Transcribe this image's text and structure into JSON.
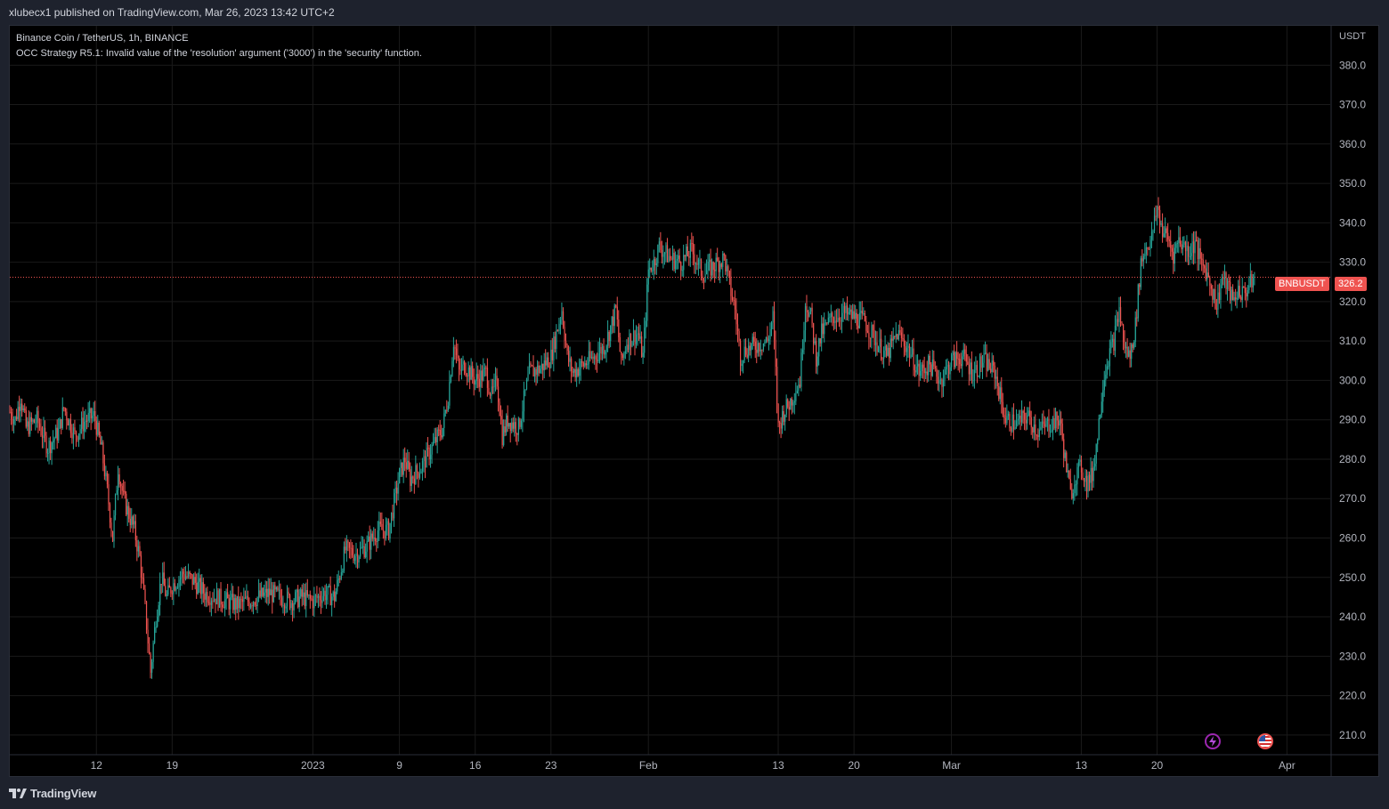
{
  "header": {
    "publish_text": "xlubecx1 published on TradingView.com, Mar 26, 2023 13:42 UTC+2"
  },
  "legend": {
    "symbol_line": "Binance Coin / TetherUS, 1h, BINANCE",
    "error_line": "OCC Strategy R5.1: Invalid value of the 'resolution' argument ('3000') in the 'security' function."
  },
  "price_axis": {
    "unit_label": "USDT"
  },
  "last_price": {
    "symbol": "BNBUSDT",
    "value": "326.2",
    "color": "#ef5350"
  },
  "footer": {
    "brand": "TradingView"
  },
  "events": {
    "lightning_icon": "lightning-icon",
    "flag_icon": "us-flag-icon"
  },
  "colors": {
    "up": "#26a69a",
    "down": "#ef5350",
    "background": "#000000",
    "grid": "#1a1a1a"
  },
  "chart_data": {
    "type": "candlestick",
    "title": "Binance Coin / TetherUS, 1h, BINANCE",
    "ylabel": "USDT",
    "ylim": [
      205,
      390
    ],
    "y_ticks": [
      210,
      220,
      230,
      240,
      250,
      260,
      270,
      280,
      290,
      300,
      310,
      320,
      330,
      340,
      350,
      360,
      370,
      380
    ],
    "x_ticks": [
      {
        "label": "12",
        "day": 0
      },
      {
        "label": "19",
        "day": 7
      },
      {
        "label": "2023",
        "day": 20
      },
      {
        "label": "9",
        "day": 28
      },
      {
        "label": "16",
        "day": 35
      },
      {
        "label": "23",
        "day": 42
      },
      {
        "label": "Feb",
        "day": 51
      },
      {
        "label": "13",
        "day": 63
      },
      {
        "label": "20",
        "day": 70
      },
      {
        "label": "Mar",
        "day": 79
      },
      {
        "label": "13",
        "day": 91
      },
      {
        "label": "20",
        "day": 98
      },
      {
        "label": "Apr",
        "day": 110
      }
    ],
    "x_range_days": [
      -8,
      114
    ],
    "series_close": [
      {
        "d": -8,
        "v": 292
      },
      {
        "d": -7.5,
        "v": 290
      },
      {
        "d": -7,
        "v": 296
      },
      {
        "d": -6.5,
        "v": 288
      },
      {
        "d": -5.5,
        "v": 290
      },
      {
        "d": -4.5,
        "v": 283
      },
      {
        "d": -3.5,
        "v": 287
      },
      {
        "d": -3,
        "v": 293
      },
      {
        "d": -2,
        "v": 286
      },
      {
        "d": -1,
        "v": 290
      },
      {
        "d": -0.2,
        "v": 291
      },
      {
        "d": 0.5,
        "v": 282
      },
      {
        "d": 1,
        "v": 272
      },
      {
        "d": 1.5,
        "v": 260
      },
      {
        "d": 2,
        "v": 278
      },
      {
        "d": 2.5,
        "v": 270
      },
      {
        "d": 3,
        "v": 266
      },
      {
        "d": 3.5,
        "v": 262
      },
      {
        "d": 4,
        "v": 255
      },
      {
        "d": 4.5,
        "v": 242
      },
      {
        "d": 5,
        "v": 226
      },
      {
        "d": 5.5,
        "v": 240
      },
      {
        "d": 6,
        "v": 250
      },
      {
        "d": 6.5,
        "v": 245
      },
      {
        "d": 7,
        "v": 248
      },
      {
        "d": 8,
        "v": 251
      },
      {
        "d": 9,
        "v": 249
      },
      {
        "d": 10,
        "v": 246
      },
      {
        "d": 11,
        "v": 245
      },
      {
        "d": 12,
        "v": 244
      },
      {
        "d": 13,
        "v": 243
      },
      {
        "d": 14,
        "v": 244
      },
      {
        "d": 15,
        "v": 245
      },
      {
        "d": 16,
        "v": 246
      },
      {
        "d": 17,
        "v": 245
      },
      {
        "d": 18,
        "v": 244
      },
      {
        "d": 19,
        "v": 245
      },
      {
        "d": 20,
        "v": 244
      },
      {
        "d": 21,
        "v": 246
      },
      {
        "d": 22,
        "v": 245
      },
      {
        "d": 23,
        "v": 257
      },
      {
        "d": 24,
        "v": 256
      },
      {
        "d": 25,
        "v": 258
      },
      {
        "d": 26,
        "v": 262
      },
      {
        "d": 27,
        "v": 262
      },
      {
        "d": 28,
        "v": 276
      },
      {
        "d": 28.5,
        "v": 280
      },
      {
        "d": 29,
        "v": 275
      },
      {
        "d": 30,
        "v": 278
      },
      {
        "d": 31,
        "v": 283
      },
      {
        "d": 32,
        "v": 288
      },
      {
        "d": 32.5,
        "v": 296
      },
      {
        "d": 33,
        "v": 310
      },
      {
        "d": 33.5,
        "v": 302
      },
      {
        "d": 34,
        "v": 304
      },
      {
        "d": 35,
        "v": 300
      },
      {
        "d": 36,
        "v": 302
      },
      {
        "d": 36.5,
        "v": 296
      },
      {
        "d": 37,
        "v": 300
      },
      {
        "d": 37.5,
        "v": 286
      },
      {
        "d": 38,
        "v": 290
      },
      {
        "d": 39,
        "v": 288
      },
      {
        "d": 40,
        "v": 302
      },
      {
        "d": 41,
        "v": 303
      },
      {
        "d": 42,
        "v": 306
      },
      {
        "d": 43,
        "v": 318
      },
      {
        "d": 43.5,
        "v": 306
      },
      {
        "d": 44,
        "v": 302
      },
      {
        "d": 45,
        "v": 304
      },
      {
        "d": 46,
        "v": 306
      },
      {
        "d": 47,
        "v": 309
      },
      {
        "d": 48,
        "v": 318
      },
      {
        "d": 48.5,
        "v": 304
      },
      {
        "d": 49,
        "v": 310
      },
      {
        "d": 50,
        "v": 312
      },
      {
        "d": 50.5,
        "v": 306
      },
      {
        "d": 51,
        "v": 328
      },
      {
        "d": 51.5,
        "v": 330
      },
      {
        "d": 52,
        "v": 334
      },
      {
        "d": 53,
        "v": 331
      },
      {
        "d": 54,
        "v": 330
      },
      {
        "d": 55,
        "v": 333
      },
      {
        "d": 56,
        "v": 327
      },
      {
        "d": 57,
        "v": 329
      },
      {
        "d": 58,
        "v": 331
      },
      {
        "d": 58.5,
        "v": 324
      },
      {
        "d": 59,
        "v": 318
      },
      {
        "d": 59.5,
        "v": 306
      },
      {
        "d": 60,
        "v": 308
      },
      {
        "d": 61,
        "v": 309
      },
      {
        "d": 62,
        "v": 310
      },
      {
        "d": 62.5,
        "v": 316
      },
      {
        "d": 63,
        "v": 288
      },
      {
        "d": 63.5,
        "v": 292
      },
      {
        "d": 64,
        "v": 294
      },
      {
        "d": 65,
        "v": 300
      },
      {
        "d": 65.5,
        "v": 320
      },
      {
        "d": 66,
        "v": 316
      },
      {
        "d": 66.5,
        "v": 306
      },
      {
        "d": 67,
        "v": 312
      },
      {
        "d": 68,
        "v": 316
      },
      {
        "d": 69,
        "v": 317
      },
      {
        "d": 70,
        "v": 316
      },
      {
        "d": 71,
        "v": 315
      },
      {
        "d": 72,
        "v": 310
      },
      {
        "d": 73,
        "v": 306
      },
      {
        "d": 74,
        "v": 312
      },
      {
        "d": 75,
        "v": 308
      },
      {
        "d": 76,
        "v": 302
      },
      {
        "d": 77,
        "v": 304
      },
      {
        "d": 78,
        "v": 300
      },
      {
        "d": 79,
        "v": 305
      },
      {
        "d": 80,
        "v": 306
      },
      {
        "d": 81,
        "v": 302
      },
      {
        "d": 82,
        "v": 305
      },
      {
        "d": 83,
        "v": 302
      },
      {
        "d": 83.5,
        "v": 296
      },
      {
        "d": 84,
        "v": 290
      },
      {
        "d": 85,
        "v": 289
      },
      {
        "d": 86,
        "v": 291
      },
      {
        "d": 87,
        "v": 287
      },
      {
        "d": 88,
        "v": 289
      },
      {
        "d": 89,
        "v": 290
      },
      {
        "d": 89.5,
        "v": 280
      },
      {
        "d": 90,
        "v": 271
      },
      {
        "d": 90.5,
        "v": 276
      },
      {
        "d": 91,
        "v": 278
      },
      {
        "d": 91.5,
        "v": 274
      },
      {
        "d": 92,
        "v": 276
      },
      {
        "d": 92.5,
        "v": 286
      },
      {
        "d": 93,
        "v": 300
      },
      {
        "d": 93.5,
        "v": 306
      },
      {
        "d": 94,
        "v": 310
      },
      {
        "d": 94.5,
        "v": 318
      },
      {
        "d": 95,
        "v": 308
      },
      {
        "d": 95.5,
        "v": 306
      },
      {
        "d": 96,
        "v": 314
      },
      {
        "d": 96.5,
        "v": 330
      },
      {
        "d": 97,
        "v": 334
      },
      {
        "d": 97.5,
        "v": 336
      },
      {
        "d": 98,
        "v": 344
      },
      {
        "d": 98.5,
        "v": 338
      },
      {
        "d": 99,
        "v": 336
      },
      {
        "d": 99.5,
        "v": 332
      },
      {
        "d": 100,
        "v": 336
      },
      {
        "d": 100.5,
        "v": 334
      },
      {
        "d": 101,
        "v": 333
      },
      {
        "d": 101.5,
        "v": 335
      },
      {
        "d": 102,
        "v": 330
      },
      {
        "d": 102.5,
        "v": 328
      },
      {
        "d": 103,
        "v": 324
      },
      {
        "d": 103.5,
        "v": 319
      },
      {
        "d": 104,
        "v": 326
      },
      {
        "d": 104.5,
        "v": 324
      },
      {
        "d": 105,
        "v": 320
      },
      {
        "d": 105.5,
        "v": 323
      },
      {
        "d": 106,
        "v": 322
      },
      {
        "d": 106.5,
        "v": 324
      },
      {
        "d": 107,
        "v": 326.2
      }
    ]
  }
}
